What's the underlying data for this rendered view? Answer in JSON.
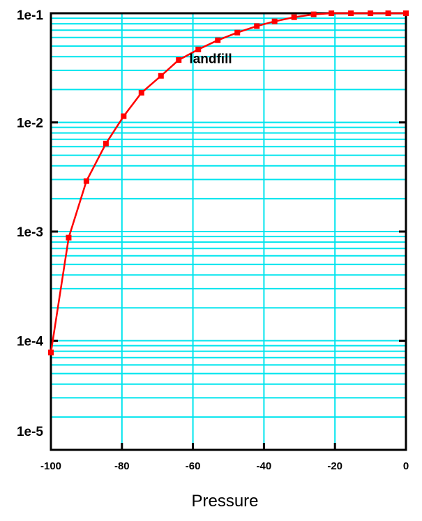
{
  "chart_data": {
    "type": "line",
    "xlabel": "Pressure",
    "ylabel": "",
    "xlim": [
      -100,
      0
    ],
    "ylim": [
      1e-05,
      0.1
    ],
    "y_scale": "log",
    "grid": true,
    "x_tick_labels": [
      "-100",
      "-80",
      "-60",
      "-40",
      "-20",
      "0"
    ],
    "x_tick_values": [
      -100,
      -80,
      -60,
      -40,
      -20,
      0
    ],
    "y_tick_labels": [
      "1e-5",
      "1e-4",
      "1e-3",
      "1e-2",
      "1e-1"
    ],
    "y_tick_values": [
      1e-05,
      0.0001,
      0.001,
      0.01,
      0.1
    ],
    "annotations": [
      {
        "text": "landfill",
        "x": -55,
        "y": 0.035
      }
    ],
    "series": [
      {
        "color": "#ff0000",
        "marker": "square",
        "x": [
          -100,
          -95,
          -90,
          -84.5,
          -79.5,
          -74.5,
          -69,
          -64,
          -58.5,
          -53,
          -47.5,
          -42,
          -37,
          -31.5,
          -26,
          -21,
          -15.5,
          -10,
          -5,
          0
        ],
        "y": [
          7.8e-05,
          0.00088,
          0.0029,
          0.0064,
          0.0114,
          0.0187,
          0.0267,
          0.0373,
          0.0466,
          0.0566,
          0.0665,
          0.0763,
          0.0843,
          0.092,
          0.0977,
          0.1,
          0.1,
          0.1,
          0.1,
          0.1
        ]
      }
    ]
  },
  "colors": {
    "grid": "#00e5ee",
    "series": "#ff0000",
    "frame": "#000000"
  }
}
